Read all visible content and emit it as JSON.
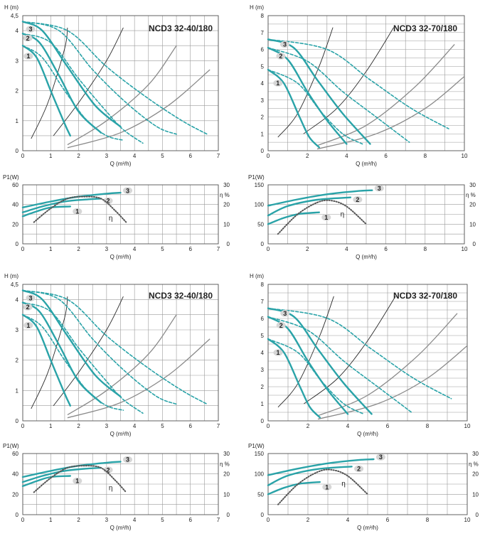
{
  "colors": {
    "teal": "#2aa3a8",
    "sysgray": "#8a8a8a",
    "sysdark": "#2b2b2b",
    "grid": "#9a9a9a",
    "eta": "#555555",
    "badge": "#d6d6d6"
  },
  "chart_data": [
    {
      "type": "line",
      "title": "NCD3 32-40/180",
      "xlabel": "Q (m³/h)",
      "ylabel": "H (m)",
      "xlim": [
        0,
        7
      ],
      "ylim": [
        0,
        4.5
      ],
      "xticks": [
        "0",
        "1",
        "2",
        "3",
        "4",
        "5",
        "6",
        "7"
      ],
      "yticks": [
        "0",
        "1",
        "2",
        "3",
        "4",
        "4,5"
      ],
      "ytick_values": [
        0,
        1,
        2,
        3,
        4,
        4.5
      ],
      "speed_labels": [
        "1",
        "2",
        "3"
      ],
      "series": [
        {
          "name": "1",
          "style": "solid",
          "x": [
            0,
            0.5,
            1,
            1.5,
            1.7
          ],
          "y": [
            3.5,
            3.1,
            2.0,
            0.9,
            0.5
          ]
        },
        {
          "name": "1",
          "style": "dashed",
          "x": [
            0,
            0.7,
            1.5,
            2.3,
            3.0,
            3.6
          ],
          "y": [
            3.5,
            3.1,
            2.0,
            1.0,
            0.5,
            0.35
          ]
        },
        {
          "name": "2",
          "style": "solid",
          "x": [
            0,
            0.6,
            1.3,
            2.0,
            2.8
          ],
          "y": [
            3.9,
            3.6,
            2.5,
            1.3,
            0.6
          ]
        },
        {
          "name": "2",
          "style": "dashed",
          "x": [
            0,
            1,
            2,
            3,
            3.6,
            4.3
          ],
          "y": [
            3.9,
            3.6,
            2.4,
            1.3,
            0.7,
            0.25
          ]
        },
        {
          "name": "3",
          "style": "solid",
          "x": [
            0,
            0.7,
            1.6,
            2.6,
            3.5
          ],
          "y": [
            4.3,
            4.0,
            2.8,
            1.5,
            0.8
          ]
        },
        {
          "name": "3",
          "style": "dashed",
          "x": [
            0,
            1.3,
            2.5,
            3.7,
            4.8,
            5.5
          ],
          "y": [
            4.3,
            4.0,
            2.7,
            1.6,
            0.8,
            0.55
          ]
        },
        {
          "name": "3",
          "style": "dashed",
          "x": [
            0,
            1.6,
            3.0,
            4.4,
            5.7,
            6.6
          ],
          "y": [
            4.3,
            4.0,
            2.8,
            1.8,
            1.0,
            0.55
          ]
        }
      ],
      "system_curves": [
        {
          "color": "dark",
          "x": [
            0.3,
            0.9,
            1.5,
            1.6
          ],
          "y": [
            0.4,
            1.6,
            3.4,
            4.1
          ]
        },
        {
          "color": "dark",
          "x": [
            1.1,
            2.0,
            3.0,
            3.6
          ],
          "y": [
            0.5,
            1.6,
            3.0,
            4.1
          ]
        },
        {
          "color": "gray",
          "x": [
            1.6,
            3.0,
            4.5,
            5.5
          ],
          "y": [
            0.2,
            1.0,
            2.2,
            3.5
          ]
        },
        {
          "color": "gray",
          "x": [
            1.6,
            3.5,
            5.2,
            6.7
          ],
          "y": [
            0.1,
            0.6,
            1.5,
            2.7
          ]
        }
      ]
    },
    {
      "type": "line",
      "title": "NCD3 32-70/180",
      "xlabel": "Q (m³/h)",
      "ylabel": "H (m)",
      "xlim": [
        0,
        10
      ],
      "ylim": [
        0,
        8
      ],
      "xticks": [
        "0",
        "2",
        "4",
        "6",
        "8",
        "10"
      ],
      "xtick_values": [
        0,
        2,
        4,
        6,
        8,
        10
      ],
      "yticks": [
        "0",
        "1",
        "2",
        "3",
        "4",
        "5",
        "6",
        "7",
        "8"
      ],
      "ytick_values": [
        0,
        1,
        2,
        3,
        4,
        5,
        6,
        7,
        8
      ],
      "speed_labels": [
        "1",
        "2",
        "3"
      ],
      "series": [
        {
          "name": "1",
          "style": "solid",
          "x": [
            0,
            0.8,
            1.6,
            2.1,
            2.6
          ],
          "y": [
            4.8,
            4.0,
            2.0,
            0.8,
            0.2
          ]
        },
        {
          "name": "1",
          "style": "dashed",
          "x": [
            0,
            1.5,
            2.7,
            3.8,
            4.8
          ],
          "y": [
            4.8,
            4.0,
            2.3,
            1.0,
            0.4
          ]
        },
        {
          "name": "2",
          "style": "solid",
          "x": [
            0,
            1,
            2,
            3,
            4
          ],
          "y": [
            6.1,
            5.4,
            3.5,
            1.8,
            0.4
          ]
        },
        {
          "name": "2",
          "style": "dashed",
          "x": [
            0,
            2,
            3.8,
            5.5,
            7.2
          ],
          "y": [
            6.1,
            5.3,
            3.5,
            2.0,
            0.5
          ]
        },
        {
          "name": "3",
          "style": "solid",
          "x": [
            0,
            1.3,
            2.5,
            3.8,
            5.2
          ],
          "y": [
            6.6,
            6.1,
            4.2,
            2.2,
            0.4
          ]
        },
        {
          "name": "3",
          "style": "dashed",
          "x": [
            0,
            3,
            5.2,
            7.3,
            9.2
          ],
          "y": [
            6.6,
            6.0,
            4.2,
            2.5,
            1.3
          ]
        }
      ],
      "system_curves": [
        {
          "color": "dark",
          "x": [
            0.5,
            1.5,
            2.6,
            3.3
          ],
          "y": [
            0.8,
            2.2,
            5.0,
            7.3
          ]
        },
        {
          "color": "dark",
          "x": [
            1.8,
            3.5,
            5.0,
            6.4
          ],
          "y": [
            1.0,
            2.5,
            4.7,
            7.3
          ]
        },
        {
          "color": "gray",
          "x": [
            2.5,
            5,
            7.5,
            9.5
          ],
          "y": [
            0.3,
            1.5,
            3.8,
            6.3
          ]
        },
        {
          "color": "gray",
          "x": [
            2.5,
            5.5,
            8,
            10
          ],
          "y": [
            0.1,
            1.0,
            2.5,
            4.4
          ]
        }
      ]
    },
    {
      "type": "line",
      "xlabel": "Q (m³/h)",
      "ylabel": "P1(W)",
      "y2label": "η %",
      "xlim": [
        0,
        7
      ],
      "ylim": [
        0,
        60
      ],
      "y2lim": [
        0,
        30
      ],
      "xticks": [
        "0",
        "1",
        "2",
        "3",
        "4",
        "5",
        "6",
        "7"
      ],
      "yticks": [
        "0",
        "20",
        "40",
        "60"
      ],
      "ytick_values": [
        0,
        20,
        40,
        60
      ],
      "y2ticks": [
        "0",
        "10",
        "20",
        "30"
      ],
      "y2tick_values": [
        0,
        10,
        20,
        30
      ],
      "speed_labels": [
        "1",
        "2",
        "3"
      ],
      "eta_label": "η",
      "series": [
        {
          "name": "1",
          "x": [
            0,
            0.5,
            1,
            1.7
          ],
          "y": [
            28,
            33,
            37,
            38
          ]
        },
        {
          "name": "2",
          "x": [
            0,
            0.7,
            1.5,
            2.2,
            2.8
          ],
          "y": [
            32,
            38,
            43,
            45,
            46
          ]
        },
        {
          "name": "3",
          "x": [
            0,
            1,
            2,
            3,
            3.5
          ],
          "y": [
            37,
            43,
            48,
            51,
            52
          ]
        },
        {
          "name": "η",
          "axis": "right",
          "x": [
            0.4,
            1.0,
            1.6,
            2.2,
            2.8,
            3.3,
            3.7
          ],
          "y": [
            11,
            18,
            23,
            24,
            23,
            17,
            11
          ]
        }
      ]
    },
    {
      "type": "line",
      "xlabel": "Q (m³/h)",
      "ylabel": "P1(W)",
      "y2label": "η %",
      "xlim": [
        0,
        10
      ],
      "ylim": [
        0,
        150
      ],
      "y2lim": [
        0,
        30
      ],
      "xticks": [
        "0",
        "2",
        "4",
        "6",
        "8",
        "10"
      ],
      "xtick_values": [
        0,
        2,
        4,
        6,
        8,
        10
      ],
      "yticks": [
        "0",
        "50",
        "100",
        "150"
      ],
      "ytick_values": [
        0,
        50,
        100,
        150
      ],
      "y2ticks": [
        "0",
        "10",
        "20",
        "30"
      ],
      "y2tick_values": [
        0,
        10,
        20,
        30
      ],
      "speed_labels": [
        "1",
        "2",
        "3"
      ],
      "eta_label": "η",
      "series": [
        {
          "name": "1",
          "x": [
            0,
            0.8,
            1.6,
            2.6
          ],
          "y": [
            50,
            66,
            76,
            80
          ]
        },
        {
          "name": "2",
          "x": [
            0,
            1,
            2.5,
            4.2
          ],
          "y": [
            72,
            96,
            112,
            118
          ]
        },
        {
          "name": "3",
          "x": [
            0,
            1.5,
            3,
            4.5,
            5.3
          ],
          "y": [
            97,
            113,
            126,
            134,
            136
          ]
        },
        {
          "name": "η",
          "axis": "right",
          "x": [
            0.5,
            1.5,
            2.5,
            3.2,
            4.0,
            5.0
          ],
          "y": [
            5,
            15,
            21,
            22,
            19,
            10
          ]
        }
      ]
    }
  ]
}
